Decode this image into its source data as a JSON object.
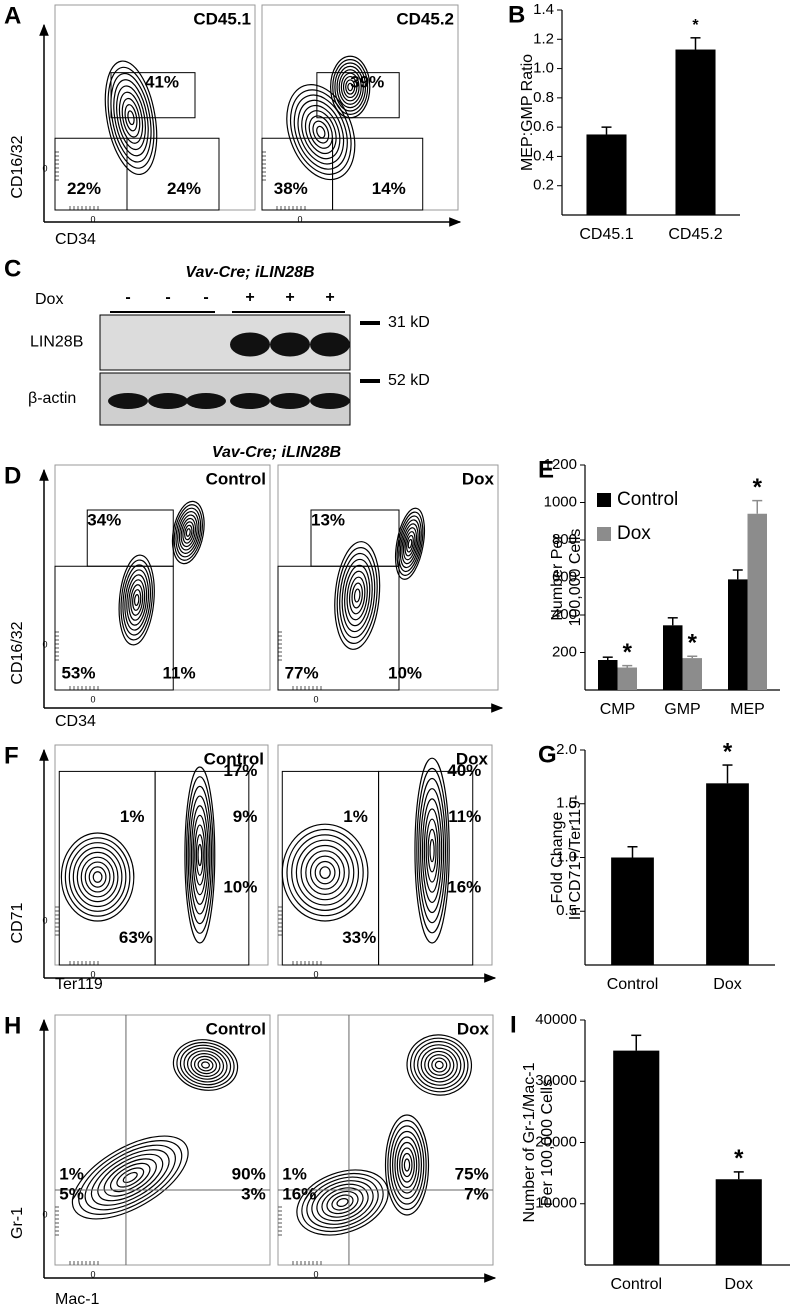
{
  "flow": [
    {
      "label": "A",
      "ylabel": "CD16/32",
      "xlabel": "CD34",
      "zero": "0",
      "plots": [
        {
          "title": "CD45.1",
          "gates": [
            "41%",
            "22%",
            "24%"
          ]
        },
        {
          "title": "CD45.2",
          "gates": [
            "39%",
            "38%",
            "14%"
          ]
        }
      ]
    },
    {
      "label": "D",
      "heading": "Vav-Cre; iLIN28B",
      "ylabel": "CD16/32",
      "xlabel": "CD34",
      "zero": "0",
      "plots": [
        {
          "title": "Control",
          "gates": [
            "34%",
            "53%",
            "11%"
          ]
        },
        {
          "title": "Dox",
          "gates": [
            "13%",
            "77%",
            "10%"
          ]
        }
      ]
    },
    {
      "label": "F",
      "ylabel": "CD71",
      "xlabel": "Ter119",
      "zero": "0",
      "plots": [
        {
          "title": "Control",
          "gates": [
            "17%",
            "1%",
            "9%",
            "10%",
            "63%"
          ]
        },
        {
          "title": "Dox",
          "gates": [
            "40%",
            "1%",
            "11%",
            "16%",
            "33%"
          ]
        }
      ]
    },
    {
      "label": "H",
      "ylabel": "Gr-1",
      "xlabel": "Mac-1",
      "zero": "0",
      "plots": [
        {
          "title": "Control",
          "gates": [
            "1%",
            "5%",
            "90%",
            "3%"
          ]
        },
        {
          "title": "Dox",
          "gates": [
            "1%",
            "16%",
            "75%",
            "7%"
          ]
        }
      ]
    }
  ],
  "blot": {
    "label": "C",
    "heading": "Vav-Cre; iLIN28B",
    "row_label": "Dox",
    "lanes": [
      "-",
      "-",
      "-",
      "+",
      "+",
      "+"
    ],
    "bands": [
      "LIN28B",
      "β-actin"
    ],
    "markers": [
      "31 kD",
      "52 kD"
    ]
  },
  "chart_data": [
    {
      "type": "bar",
      "label": "B",
      "ylabel": [
        "MEP:GMP Ratio"
      ],
      "categories": [
        "CD45.1",
        "CD45.2"
      ],
      "values": [
        0.55,
        1.13
      ],
      "errors": [
        0.05,
        0.08
      ],
      "markers": [
        null,
        "*"
      ],
      "color": "#000000",
      "ylim": [
        0,
        1.4
      ],
      "yticks": [
        0.2,
        0.4,
        0.6,
        0.8,
        {
          "value": 1,
          "label": "1.0"
        },
        1.2,
        1.4
      ]
    },
    {
      "type": "bar",
      "label": "E",
      "ylabel": [
        "Number Per",
        "100,000 Cells"
      ],
      "categories": [
        "CMP",
        "GMP",
        "MEP"
      ],
      "series": [
        {
          "name": "Control",
          "color": "#000000",
          "values": [
            160,
            345,
            590
          ],
          "errors": [
            15,
            40,
            50
          ],
          "markers": [
            null,
            null,
            null
          ]
        },
        {
          "name": "Dox",
          "color": "#8c8c8c",
          "values": [
            120,
            170,
            940
          ],
          "errors": [
            10,
            10,
            70
          ],
          "markers": [
            "*",
            "*",
            "*"
          ]
        }
      ],
      "ylim": [
        0,
        1200
      ],
      "yticks": [
        200,
        400,
        600,
        800,
        1000,
        1200
      ],
      "legend": "upper-left"
    },
    {
      "type": "bar",
      "label": "G",
      "ylabel": [
        "Fold Change",
        "In CD71+/Ter119-"
      ],
      "categories": [
        "Control",
        "Dox"
      ],
      "values": [
        1.0,
        1.69
      ],
      "errors": [
        0.1,
        0.17
      ],
      "markers": [
        null,
        "*"
      ],
      "color": "#000000",
      "ylim": [
        0,
        2
      ],
      "yticks": [
        0.5,
        {
          "value": 1,
          "label": "1.0"
        },
        1.5,
        {
          "value": 2,
          "label": "2.0"
        }
      ]
    },
    {
      "type": "bar",
      "label": "I",
      "ylabel": [
        "Number of Gr-1/Mac-1",
        "Per 100,000 Cells"
      ],
      "categories": [
        "Control",
        "Dox"
      ],
      "values": [
        35000,
        14000
      ],
      "errors": [
        2500,
        1200
      ],
      "markers": [
        null,
        "*"
      ],
      "color": "#000000",
      "ylim": [
        0,
        40000
      ],
      "yticks": [
        10000,
        20000,
        30000,
        40000
      ]
    }
  ]
}
